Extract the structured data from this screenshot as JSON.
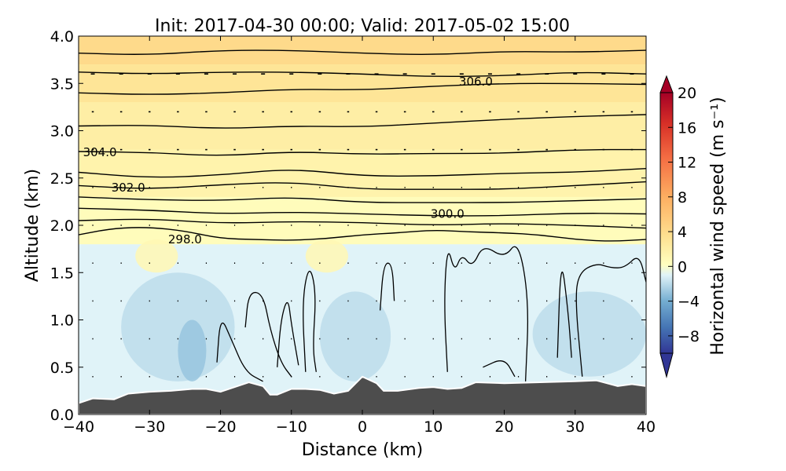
{
  "chart_data": {
    "type": "heatmap",
    "title": "Init: 2017-04-30 00:00; Valid: 2017-05-02 15:00",
    "xlabel": "Distance (km)",
    "ylabel": "Altitude (km)",
    "xlim": [
      -40,
      40
    ],
    "ylim": [
      0.0,
      4.0
    ],
    "xticks": [
      -40,
      -30,
      -20,
      -10,
      0,
      10,
      20,
      30,
      40
    ],
    "xtick_labels": [
      "−40",
      "−30",
      "−20",
      "−10",
      "0",
      "10",
      "20",
      "30",
      "40"
    ],
    "yticks": [
      0.0,
      0.5,
      1.0,
      1.5,
      2.0,
      2.5,
      3.0,
      3.5,
      4.0
    ],
    "ytick_labels": [
      "0.0",
      "0.5",
      "1.0",
      "1.5",
      "2.0",
      "2.5",
      "3.0",
      "3.5",
      "4.0"
    ],
    "colorbar": {
      "label": "Horizontal wind speed (m s⁻¹)",
      "range": [
        -10,
        20
      ],
      "step": 1,
      "ticks": [
        20,
        16,
        12,
        8,
        4,
        0,
        -4,
        -8
      ],
      "tick_labels": [
        "20",
        "16",
        "12",
        "8",
        "4",
        "0",
        "−4",
        "−8"
      ],
      "extend": "both",
      "colors": {
        "neg_strong": "#313695",
        "neg_mid": "#74add1",
        "neg_light": "#e0f3f8",
        "zero": "#ffffbf",
        "pos_light": "#fee090",
        "pos_mid": "#f46d43",
        "pos_strong": "#a50026"
      }
    },
    "terrain": {
      "color": "#4d4d4d",
      "points": [
        [
          -40,
          0.12
        ],
        [
          -38,
          0.17
        ],
        [
          -35,
          0.16
        ],
        [
          -33,
          0.22
        ],
        [
          -30,
          0.24
        ],
        [
          -27,
          0.25
        ],
        [
          -24,
          0.27
        ],
        [
          -22,
          0.27
        ],
        [
          -20,
          0.24
        ],
        [
          -18,
          0.29
        ],
        [
          -16,
          0.34
        ],
        [
          -14,
          0.3
        ],
        [
          -13,
          0.21
        ],
        [
          -12,
          0.21
        ],
        [
          -10,
          0.27
        ],
        [
          -8,
          0.27
        ],
        [
          -6,
          0.26
        ],
        [
          -4,
          0.22
        ],
        [
          -2,
          0.25
        ],
        [
          0,
          0.4
        ],
        [
          2,
          0.33
        ],
        [
          3,
          0.25
        ],
        [
          5,
          0.25
        ],
        [
          8,
          0.28
        ],
        [
          10,
          0.29
        ],
        [
          12,
          0.27
        ],
        [
          14,
          0.28
        ],
        [
          16,
          0.34
        ],
        [
          20,
          0.33
        ],
        [
          25,
          0.34
        ],
        [
          30,
          0.35
        ],
        [
          33,
          0.36
        ],
        [
          36,
          0.3
        ],
        [
          38,
          0.32
        ],
        [
          40,
          0.3
        ]
      ]
    },
    "wind_field": {
      "bands": [
        {
          "y": [
            0.0,
            1.8
          ],
          "speed": -1.0
        },
        {
          "y": [
            1.8,
            2.3
          ],
          "speed": 0.5
        },
        {
          "y": [
            2.3,
            2.8
          ],
          "speed": 1.5
        },
        {
          "y": [
            2.8,
            3.3
          ],
          "speed": 2.0
        },
        {
          "y": [
            3.3,
            3.7
          ],
          "speed": 3.0
        },
        {
          "y": [
            3.7,
            4.0
          ],
          "speed": 4.0
        }
      ],
      "patches": [
        {
          "x": [
            -34,
            -18
          ],
          "y": [
            0.35,
            1.5
          ],
          "speed": -2.0
        },
        {
          "x": [
            -26,
            -22
          ],
          "y": [
            0.35,
            1.0
          ],
          "speed": -3.0
        },
        {
          "x": [
            -6,
            4
          ],
          "y": [
            0.35,
            1.3
          ],
          "speed": -2.0
        },
        {
          "x": [
            24,
            40
          ],
          "y": [
            0.4,
            1.3
          ],
          "speed": -2.0
        },
        {
          "x": [
            -32,
            -26
          ],
          "y": [
            1.5,
            1.85
          ],
          "speed": 1.0
        },
        {
          "x": [
            -8,
            -2
          ],
          "y": [
            1.5,
            1.85
          ],
          "speed": 1.0
        }
      ]
    },
    "theta_contours": [
      {
        "label": "298.0",
        "label_x": -25,
        "label_y": 1.85,
        "points": [
          [
            -40,
            1.9
          ],
          [
            -35,
            1.97
          ],
          [
            -30,
            1.98
          ],
          [
            -25,
            1.94
          ],
          [
            -20,
            1.86
          ],
          [
            -15,
            1.85
          ],
          [
            -10,
            1.84
          ],
          [
            -5,
            1.86
          ],
          [
            0,
            1.9
          ],
          [
            5,
            1.92
          ],
          [
            10,
            1.95
          ],
          [
            15,
            1.93
          ],
          [
            20,
            1.92
          ],
          [
            25,
            1.9
          ],
          [
            30,
            1.85
          ],
          [
            35,
            1.83
          ],
          [
            40,
            1.85
          ]
        ]
      },
      {
        "label": "",
        "points": [
          [
            -40,
            2.05
          ],
          [
            -30,
            2.07
          ],
          [
            -20,
            2.02
          ],
          [
            -10,
            2.04
          ],
          [
            0,
            2.03
          ],
          [
            10,
            2.0
          ],
          [
            20,
            2.02
          ],
          [
            30,
            2.0
          ],
          [
            40,
            1.97
          ]
        ]
      },
      {
        "label": "300.0",
        "label_x": 12,
        "label_y": 2.12,
        "points": [
          [
            -40,
            2.18
          ],
          [
            -30,
            2.16
          ],
          [
            -20,
            2.12
          ],
          [
            -10,
            2.14
          ],
          [
            0,
            2.12
          ],
          [
            10,
            2.1
          ],
          [
            20,
            2.1
          ],
          [
            30,
            2.13
          ],
          [
            40,
            2.12
          ]
        ]
      },
      {
        "label": "",
        "points": [
          [
            -40,
            2.3
          ],
          [
            -30,
            2.27
          ],
          [
            -20,
            2.26
          ],
          [
            -10,
            2.3
          ],
          [
            0,
            2.24
          ],
          [
            10,
            2.24
          ],
          [
            20,
            2.24
          ],
          [
            30,
            2.26
          ],
          [
            40,
            2.28
          ]
        ]
      },
      {
        "label": "302.0",
        "label_x": -33,
        "label_y": 2.4,
        "points": [
          [
            -40,
            2.42
          ],
          [
            -30,
            2.38
          ],
          [
            -20,
            2.43
          ],
          [
            -10,
            2.46
          ],
          [
            0,
            2.38
          ],
          [
            10,
            2.38
          ],
          [
            20,
            2.38
          ],
          [
            30,
            2.42
          ],
          [
            40,
            2.46
          ]
        ]
      },
      {
        "label": "",
        "points": [
          [
            -40,
            2.56
          ],
          [
            -30,
            2.5
          ],
          [
            -20,
            2.53
          ],
          [
            -10,
            2.6
          ],
          [
            0,
            2.52
          ],
          [
            10,
            2.52
          ],
          [
            20,
            2.55
          ],
          [
            30,
            2.56
          ],
          [
            40,
            2.6
          ]
        ]
      },
      {
        "label": "304.0",
        "label_x": -37,
        "label_y": 2.77,
        "points": [
          [
            -40,
            2.78
          ],
          [
            -30,
            2.77
          ],
          [
            -20,
            2.73
          ],
          [
            -10,
            2.78
          ],
          [
            0,
            2.75
          ],
          [
            10,
            2.76
          ],
          [
            20,
            2.76
          ],
          [
            30,
            2.8
          ],
          [
            40,
            2.8
          ]
        ]
      },
      {
        "label": "",
        "points": [
          [
            -40,
            3.05
          ],
          [
            -30,
            3.06
          ],
          [
            -20,
            3.02
          ],
          [
            -10,
            3.05
          ],
          [
            0,
            3.04
          ],
          [
            10,
            3.08
          ],
          [
            20,
            3.12
          ],
          [
            30,
            3.15
          ],
          [
            40,
            3.17
          ]
        ]
      },
      {
        "label": "",
        "points": [
          [
            -40,
            3.4
          ],
          [
            -30,
            3.38
          ],
          [
            -20,
            3.4
          ],
          [
            -10,
            3.44
          ],
          [
            0,
            3.43
          ],
          [
            10,
            3.47
          ],
          [
            20,
            3.5
          ],
          [
            30,
            3.5
          ],
          [
            40,
            3.49
          ]
        ]
      },
      {
        "label": "306.0",
        "label_x": 16,
        "label_y": 3.52,
        "points": [
          [
            -40,
            3.62
          ],
          [
            -30,
            3.6
          ],
          [
            -20,
            3.62
          ],
          [
            -10,
            3.62
          ],
          [
            0,
            3.6
          ],
          [
            10,
            3.57
          ],
          [
            20,
            3.58
          ],
          [
            30,
            3.62
          ],
          [
            40,
            3.6
          ]
        ]
      },
      {
        "label": "",
        "points": [
          [
            -40,
            3.82
          ],
          [
            -30,
            3.8
          ],
          [
            -20,
            3.85
          ],
          [
            -10,
            3.85
          ],
          [
            0,
            3.82
          ],
          [
            10,
            3.8
          ],
          [
            20,
            3.84
          ],
          [
            30,
            3.83
          ],
          [
            40,
            3.85
          ]
        ]
      }
    ],
    "cell_contours": [
      [
        [
          -20.5,
          0.55
        ],
        [
          -20,
          1.05
        ],
        [
          -18.5,
          0.8
        ],
        [
          -16.5,
          0.45
        ],
        [
          -14,
          0.35
        ]
      ],
      [
        [
          -16.5,
          0.92
        ],
        [
          -16,
          1.3
        ],
        [
          -14,
          1.28
        ],
        [
          -13,
          0.9
        ],
        [
          -11.5,
          0.55
        ],
        [
          -10,
          0.4
        ]
      ],
      [
        [
          -12,
          0.5
        ],
        [
          -11.5,
          1.0
        ],
        [
          -10.5,
          1.25
        ],
        [
          -10,
          0.95
        ],
        [
          -9,
          0.52
        ]
      ],
      [
        [
          -8,
          0.45
        ],
        [
          -8.5,
          1.2
        ],
        [
          -7.5,
          1.6
        ],
        [
          -6.5,
          1.3
        ],
        [
          -7,
          0.7
        ],
        [
          -6.5,
          0.45
        ]
      ],
      [
        [
          2.5,
          1.1
        ],
        [
          3,
          1.6
        ],
        [
          4.2,
          1.6
        ],
        [
          4.5,
          1.2
        ]
      ],
      [
        [
          12,
          0.45
        ],
        [
          11.5,
          1.2
        ],
        [
          12,
          1.8
        ],
        [
          13,
          1.5
        ],
        [
          14,
          1.7
        ],
        [
          15.5,
          1.55
        ],
        [
          17,
          1.8
        ],
        [
          20,
          1.65
        ],
        [
          22,
          1.85
        ],
        [
          23.5,
          1.2
        ],
        [
          23,
          0.35
        ]
      ],
      [
        [
          17,
          0.5
        ],
        [
          20,
          0.6
        ],
        [
          21.5,
          0.4
        ]
      ],
      [
        [
          27.5,
          0.6
        ],
        [
          28,
          1.7
        ],
        [
          29,
          1.1
        ],
        [
          29.5,
          0.6
        ]
      ],
      [
        [
          31,
          0.4
        ],
        [
          30,
          1.2
        ],
        [
          30.5,
          1.5
        ],
        [
          33,
          1.6
        ],
        [
          35,
          1.55
        ],
        [
          37,
          1.55
        ],
        [
          39,
          1.7
        ],
        [
          40,
          1.4
        ]
      ]
    ],
    "wind_vectors": {
      "x_start": -38,
      "x_step": 4,
      "y_start": 0.4,
      "y_step": 0.4,
      "count_x": 20,
      "count_y": 9
    }
  }
}
